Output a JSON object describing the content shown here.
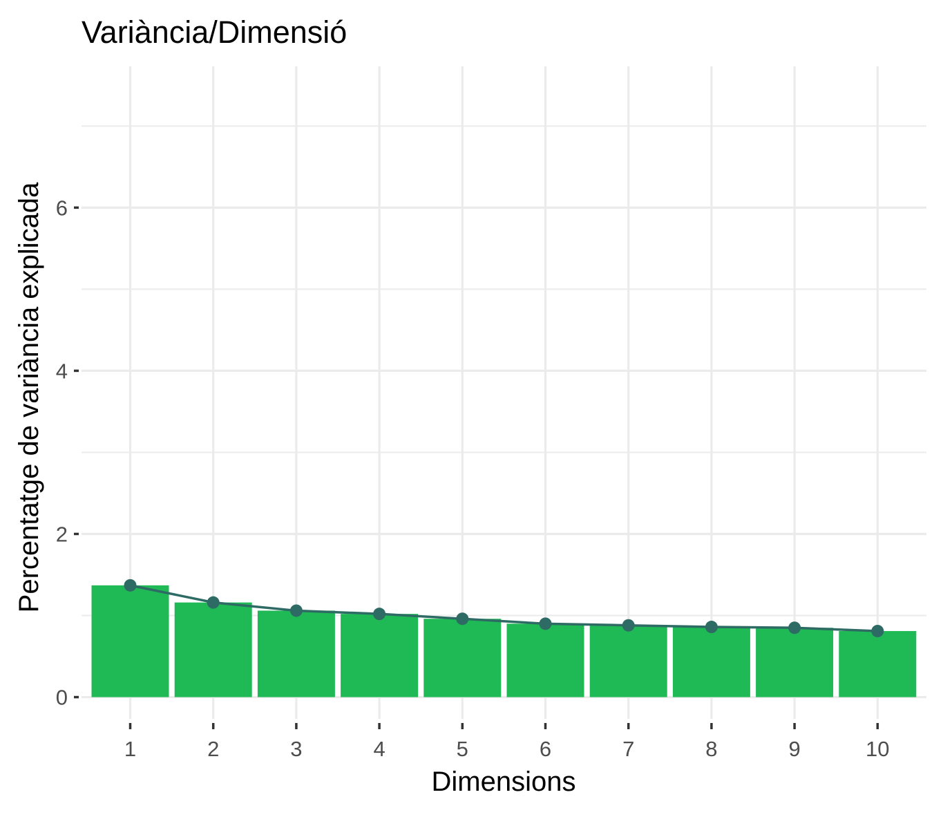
{
  "chart_data": {
    "type": "bar",
    "title": "Variància/Dimensió",
    "xlabel": "Dimensions",
    "ylabel": "Percentatge de variància explicada",
    "categories": [
      "1",
      "2",
      "3",
      "4",
      "5",
      "6",
      "7",
      "8",
      "9",
      "10"
    ],
    "values": [
      1.37,
      1.16,
      1.06,
      1.02,
      0.96,
      0.9,
      0.88,
      0.86,
      0.85,
      0.81
    ],
    "line_values": [
      1.37,
      1.16,
      1.06,
      1.02,
      0.96,
      0.9,
      0.88,
      0.86,
      0.85,
      0.81
    ],
    "ylim": [
      -0.08,
      7.85
    ],
    "yticks": [
      0,
      2,
      4,
      6
    ],
    "ytick_labels": [
      "0",
      "2",
      "4",
      "6"
    ],
    "grid": true,
    "colors": {
      "bar": "#1FBA55",
      "line": "#2E6B64",
      "grid": "#EBEBEB",
      "tick_text": "#4D4D4D",
      "title": "#000000"
    }
  }
}
